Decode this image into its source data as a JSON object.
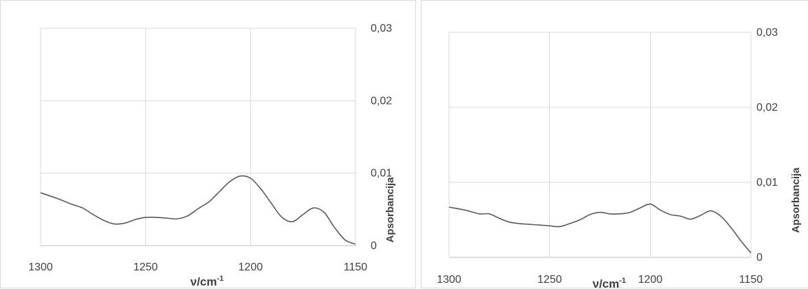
{
  "chart_data": [
    {
      "type": "line",
      "xlabel": "ν/cm",
      "xlabel_sup": "-1",
      "ylabel": "Apsorbancija",
      "xlim": [
        1300,
        1150
      ],
      "ylim": [
        0,
        0.03
      ],
      "x_ticks": [
        "1300",
        "1250",
        "1200",
        "1150"
      ],
      "y_ticks": [
        "0",
        "0,01",
        "0,02",
        "0,03"
      ],
      "grid": true,
      "y_axis_position": "right",
      "series": [
        {
          "x": [
            1300,
            1292,
            1285,
            1280,
            1275,
            1270,
            1265,
            1260,
            1255,
            1250,
            1245,
            1240,
            1235,
            1230,
            1225,
            1220,
            1215,
            1210,
            1205,
            1200,
            1195,
            1190,
            1185,
            1180,
            1175,
            1170,
            1165,
            1160,
            1155,
            1150
          ],
          "y": [
            0.0073,
            0.0065,
            0.0057,
            0.0052,
            0.0043,
            0.0035,
            0.003,
            0.0031,
            0.0036,
            0.0039,
            0.0039,
            0.0038,
            0.0037,
            0.0041,
            0.0051,
            0.006,
            0.0074,
            0.0088,
            0.0096,
            0.0093,
            0.0078,
            0.0058,
            0.0039,
            0.0033,
            0.0043,
            0.0052,
            0.0046,
            0.0025,
            0.0008,
            0.0002
          ]
        }
      ]
    },
    {
      "type": "line",
      "xlabel": "ν/cm",
      "xlabel_sup": "-1",
      "ylabel": "Apsorbancija",
      "xlim": [
        1300,
        1150
      ],
      "ylim": [
        0,
        0.03
      ],
      "x_ticks": [
        "1300",
        "1250",
        "1200",
        "1150"
      ],
      "y_ticks": [
        "0",
        "0,01",
        "0,02",
        "0,03"
      ],
      "grid": true,
      "y_axis_position": "right",
      "series": [
        {
          "x": [
            1300,
            1292,
            1285,
            1280,
            1275,
            1270,
            1265,
            1260,
            1255,
            1250,
            1245,
            1240,
            1235,
            1230,
            1225,
            1220,
            1215,
            1210,
            1205,
            1200,
            1195,
            1190,
            1185,
            1180,
            1175,
            1170,
            1165,
            1160,
            1155,
            1150
          ],
          "y": [
            0.0067,
            0.0063,
            0.0058,
            0.0058,
            0.0052,
            0.0047,
            0.0045,
            0.0044,
            0.0043,
            0.0042,
            0.0041,
            0.0045,
            0.005,
            0.0057,
            0.006,
            0.0058,
            0.0058,
            0.006,
            0.0066,
            0.0071,
            0.0063,
            0.0057,
            0.0055,
            0.0051,
            0.0056,
            0.0062,
            0.0055,
            0.004,
            0.0022,
            0.0006
          ]
        }
      ]
    }
  ]
}
